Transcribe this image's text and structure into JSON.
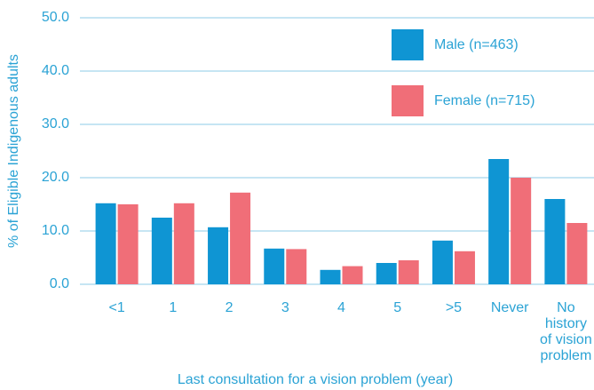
{
  "chart_data": {
    "type": "bar",
    "y_label": "% of Eligible Indigenous adults",
    "x_label": "Last consultation for a vision problem (year)",
    "categories": [
      "<1",
      "1",
      "2",
      "3",
      "4",
      "5",
      ">5",
      "Never",
      "No history of vision problem"
    ],
    "series": [
      {
        "name": "Male (n=463)",
        "color": "#0f95d3",
        "values": [
          15.2,
          12.5,
          10.7,
          6.7,
          2.7,
          4.0,
          8.2,
          23.5,
          16.0
        ]
      },
      {
        "name": "Female (n=715)",
        "color": "#f06e78",
        "values": [
          15.0,
          15.2,
          17.2,
          6.6,
          3.4,
          4.5,
          6.2,
          20.0,
          11.5
        ]
      }
    ],
    "ylim": [
      0,
      50
    ],
    "yticks": [
      {
        "value": 0,
        "label": "0.0"
      },
      {
        "value": 10,
        "label": "10.0"
      },
      {
        "value": 20,
        "label": "20.0"
      },
      {
        "value": 30,
        "label": "30.0"
      },
      {
        "value": 40,
        "label": "40.0"
      },
      {
        "value": 50,
        "label": "50.0"
      }
    ],
    "grid": true,
    "legend": "top-right"
  }
}
